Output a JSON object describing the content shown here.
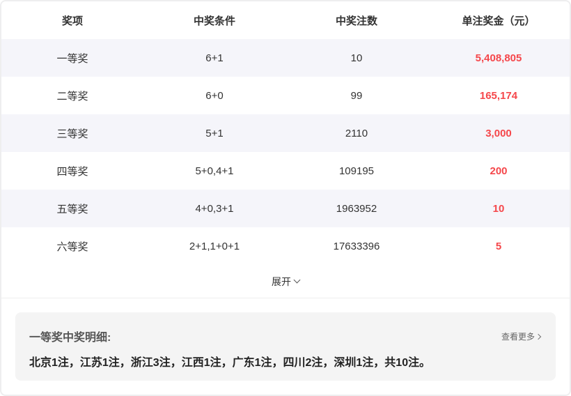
{
  "table": {
    "headers": [
      "奖项",
      "中奖条件",
      "中奖注数",
      "单注奖金（元）"
    ],
    "rows": [
      {
        "level": "一等奖",
        "condition": "6+1",
        "count": "10",
        "prize": "5,408,805"
      },
      {
        "level": "二等奖",
        "condition": "6+0",
        "count": "99",
        "prize": "165,174"
      },
      {
        "level": "三等奖",
        "condition": "5+1",
        "count": "2110",
        "prize": "3,000"
      },
      {
        "level": "四等奖",
        "condition": "5+0,4+1",
        "count": "109195",
        "prize": "200"
      },
      {
        "level": "五等奖",
        "condition": "4+0,3+1",
        "count": "1963952",
        "prize": "10"
      },
      {
        "level": "六等奖",
        "condition": "2+1,1+0+1",
        "count": "17633396",
        "prize": "5"
      }
    ]
  },
  "expand_label": "展开",
  "detail": {
    "title": "一等奖中奖明细:",
    "text": "北京1注，江苏1注，浙江3注，江西1注，广东1注，四川2注，深圳1注，共10注。",
    "more_label": "查看更多"
  },
  "colors": {
    "prize": "#f5474b",
    "stripe": "#f5f5fa"
  }
}
